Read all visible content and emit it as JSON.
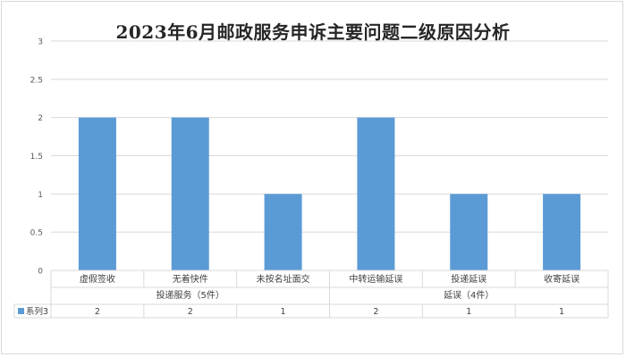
{
  "chart_data": {
    "type": "bar",
    "title": "2023年6月邮政服务申诉主要问题二级原因分析",
    "ylim": [
      0,
      3
    ],
    "yticks": [
      "0",
      "0.5",
      "1",
      "1.5",
      "2",
      "2.5",
      "3"
    ],
    "categories": [
      "虚假签收",
      "无着快件",
      "未按名址面交",
      "中转运输延误",
      "投递延误",
      "收寄延误"
    ],
    "groups": [
      {
        "label": "投递服务（5件）",
        "count": 3
      },
      {
        "label": "延误（4件）",
        "count": 3
      }
    ],
    "series": [
      {
        "name": "系列3",
        "color": "#5b9bd5",
        "values": [
          2,
          2,
          1,
          2,
          1,
          1
        ]
      }
    ],
    "table_values": [
      "2",
      "2",
      "1",
      "2",
      "1",
      "1"
    ],
    "grid": true,
    "legend": "data-table"
  }
}
